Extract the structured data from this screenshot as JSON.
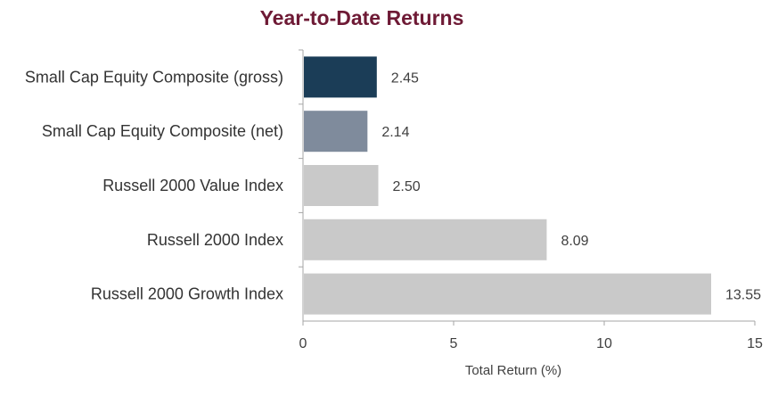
{
  "chart_data": {
    "type": "bar",
    "orientation": "horizontal",
    "title": "Year-to-Date Returns",
    "xlabel": "Total Return (%)",
    "ylabel": "",
    "xlim": [
      0,
      15
    ],
    "xticks": [
      "0",
      "5",
      "10",
      "15"
    ],
    "grid": false,
    "legend": "none",
    "categories": [
      "Small Cap Equity Composite (gross)",
      "Small Cap Equity Composite (net)",
      "Russell 2000 Value Index",
      "Russell 2000 Index",
      "Russell 2000 Growth Index"
    ],
    "values": [
      2.45,
      2.14,
      2.5,
      8.09,
      13.55
    ],
    "value_labels": [
      "2.45",
      "2.14",
      "2.50",
      "8.09",
      "13.55"
    ],
    "colors": [
      "#1b3d57",
      "#7f8b9c",
      "#c9c9c9",
      "#c9c9c9",
      "#c9c9c9"
    ]
  }
}
